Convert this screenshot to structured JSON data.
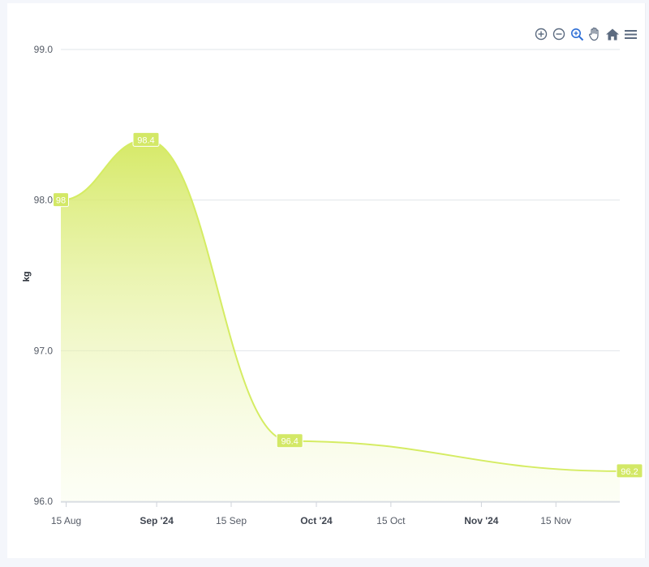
{
  "toolbar": {
    "zoom_in": "zoom-in-icon",
    "zoom_out": "zoom-out-icon",
    "selection_zoom": "magnifier-icon",
    "pan": "hand-icon",
    "reset": "home-icon",
    "menu": "hamburger-menu-icon"
  },
  "colors": {
    "series": "#d8ec6a",
    "series_line": "#d5ec63",
    "label_bg": "#d3e866",
    "grid": "#e1e4ea",
    "axis_text": "#555b66",
    "icon": "#5c6b80"
  },
  "chart_data": {
    "type": "area",
    "title": "",
    "xlabel": "",
    "ylabel": "kg",
    "ylim": [
      96.0,
      99.0
    ],
    "yticks": [
      "99.0",
      "98.0",
      "97.0",
      "96.0"
    ],
    "xticks": [
      {
        "label": "15 Aug",
        "date": "2024-08-15",
        "bold": false
      },
      {
        "label": "Sep '24",
        "date": "2024-09-01",
        "bold": true
      },
      {
        "label": "15 Sep",
        "date": "2024-09-15",
        "bold": false
      },
      {
        "label": "Oct '24",
        "date": "2024-10-01",
        "bold": true
      },
      {
        "label": "15 Oct",
        "date": "2024-10-15",
        "bold": false
      },
      {
        "label": "Nov '24",
        "date": "2024-11-01",
        "bold": true
      },
      {
        "label": "15 Nov",
        "date": "2024-11-15",
        "bold": false
      }
    ],
    "xlim": [
      "2024-08-14",
      "2024-11-27"
    ],
    "grid": true,
    "legend": "none",
    "series": [
      {
        "points": [
          {
            "x": "2024-08-14",
            "y": 98.0,
            "label": "98"
          },
          {
            "x": "2024-08-30",
            "y": 98.4,
            "label": "98.4"
          },
          {
            "x": "2024-09-26",
            "y": 96.4,
            "label": "96.4"
          },
          {
            "x": "2024-11-27",
            "y": 96.2,
            "label": "96.2"
          }
        ]
      }
    ]
  }
}
